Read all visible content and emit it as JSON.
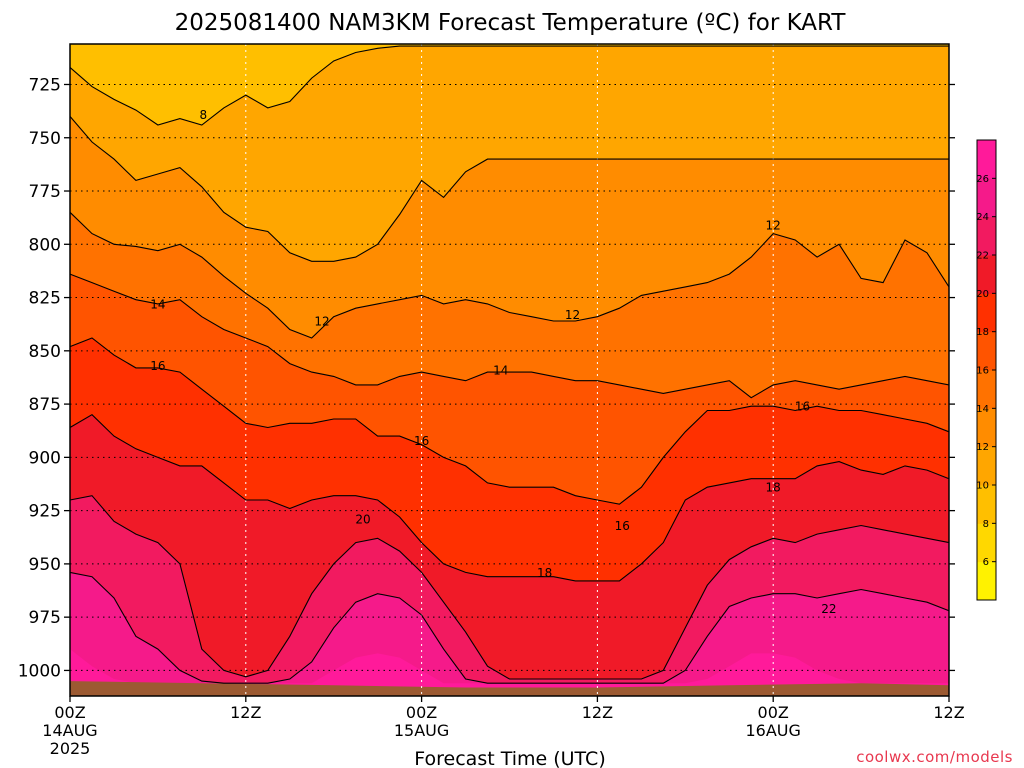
{
  "chart_data": {
    "type": "heatmap",
    "title": "2025081400 NAM3KM Forecast Temperature (ºC) for KART",
    "xlabel": "Forecast Time (UTC)",
    "ylabel": "",
    "x_ticks": [
      {
        "label": "00Z",
        "sub": "14AUG",
        "sub2": "2025",
        "hour": 0
      },
      {
        "label": "12Z",
        "sub": "",
        "sub2": "",
        "hour": 12
      },
      {
        "label": "00Z",
        "sub": "15AUG",
        "sub2": "",
        "hour": 24
      },
      {
        "label": "12Z",
        "sub": "",
        "sub2": "",
        "hour": 36
      },
      {
        "label": "00Z",
        "sub": "16AUG",
        "sub2": "",
        "hour": 48
      },
      {
        "label": "12Z",
        "sub": "",
        "sub2": "",
        "hour": 60
      }
    ],
    "xlim": [
      0,
      60
    ],
    "y_ticks": [
      "725",
      "750",
      "775",
      "800",
      "825",
      "850",
      "875",
      "900",
      "925",
      "950",
      "975",
      "1000"
    ],
    "ylim": [
      1012,
      706
    ],
    "y_reversed": true,
    "grid": true,
    "colorbar": {
      "placement": "right",
      "tick_labels": [
        "6",
        "8",
        "10",
        "12",
        "14",
        "16",
        "18",
        "20",
        "22",
        "24",
        "26"
      ],
      "levels": [
        4,
        6,
        8,
        10,
        12,
        14,
        16,
        18,
        20,
        22,
        24,
        26,
        28
      ],
      "colors": [
        "#fff200",
        "#ffd800",
        "#ffbf00",
        "#ffa600",
        "#ff8c00",
        "#ff7200",
        "#ff5400",
        "#ff3000",
        "#f01a28",
        "#f21a60",
        "#f51a8a",
        "#ff1a9a"
      ]
    },
    "terrain_color": "#9c5a32",
    "surface_pressure": [
      1005,
      1006,
      1007,
      1008,
      1008,
      1007,
      1006,
      1007
    ],
    "surface_hours": [
      0,
      9,
      18,
      27,
      36,
      45,
      54,
      60
    ],
    "contour_labels": [
      {
        "text": "8",
        "hour": 9.1,
        "p": 739
      },
      {
        "text": "12",
        "hour": 17.2,
        "p": 836
      },
      {
        "text": "12",
        "hour": 34.3,
        "p": 833
      },
      {
        "text": "12",
        "hour": 48.0,
        "p": 791
      },
      {
        "text": "14",
        "hour": 6.0,
        "p": 828
      },
      {
        "text": "14",
        "hour": 29.4,
        "p": 859
      },
      {
        "text": "16",
        "hour": 6.0,
        "p": 857
      },
      {
        "text": "16",
        "hour": 24.0,
        "p": 892
      },
      {
        "text": "16",
        "hour": 37.7,
        "p": 932
      },
      {
        "text": "16",
        "hour": 50.0,
        "p": 876
      },
      {
        "text": "18",
        "hour": 32.4,
        "p": 954
      },
      {
        "text": "18",
        "hour": 48.0,
        "p": 914
      },
      {
        "text": "20",
        "hour": 20.0,
        "p": 929
      },
      {
        "text": "22",
        "hour": 51.8,
        "p": 971
      }
    ]
  },
  "watermark": "coolwx.com/models"
}
